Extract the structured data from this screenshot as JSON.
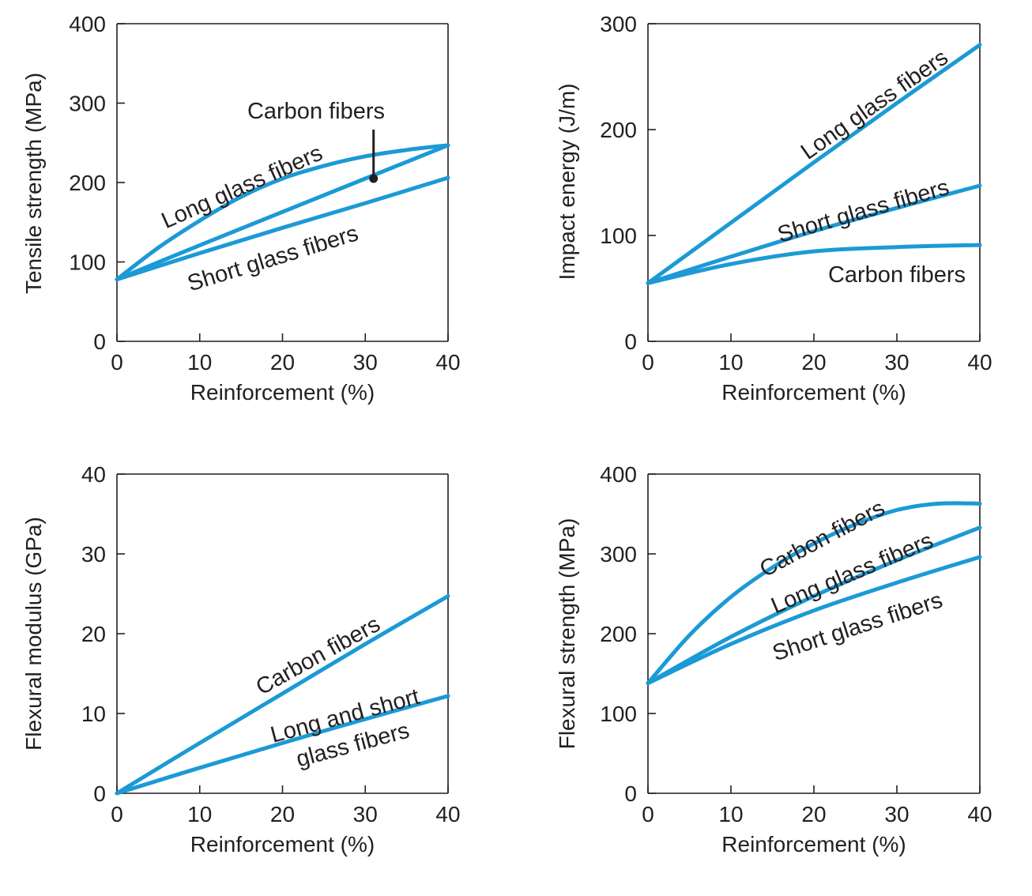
{
  "chart_data": [
    {
      "type": "line",
      "xlabel": "Reinforcement (%)",
      "ylabel": "Tensile strength (MPa)",
      "xlim": [
        0,
        40
      ],
      "ylim": [
        0,
        400
      ],
      "xticks": [
        "0",
        "10",
        "20",
        "30",
        "40"
      ],
      "yticks": [
        "0",
        "100",
        "200",
        "300",
        "400"
      ],
      "series": [
        {
          "name": "Long glass fibers",
          "x": [
            0,
            5,
            10,
            15,
            20,
            25,
            30,
            35,
            40
          ],
          "y": [
            78,
            118,
            152,
            182,
            205,
            221,
            233,
            241,
            247
          ]
        },
        {
          "name": "Carbon fibers",
          "x": [
            0,
            10,
            20,
            30,
            40
          ],
          "y": [
            78,
            121,
            163,
            205,
            247
          ]
        },
        {
          "name": "Short glass fibers",
          "x": [
            0,
            10,
            20,
            30,
            40
          ],
          "y": [
            78,
            111,
            143,
            174,
            206
          ]
        }
      ],
      "annotations": [
        {
          "text": "Long glass fibers",
          "series": "Long glass fibers"
        },
        {
          "text": "Carbon fibers",
          "series": "Carbon fibers",
          "point": [
            31,
            205
          ]
        },
        {
          "text": "Short glass fibers",
          "series": "Short glass fibers"
        }
      ]
    },
    {
      "type": "line",
      "xlabel": "Reinforcement (%)",
      "ylabel": "Impact energy (J/m)",
      "xlim": [
        0,
        40
      ],
      "ylim": [
        0,
        300
      ],
      "xticks": [
        "0",
        "10",
        "20",
        "30",
        "40"
      ],
      "yticks": [
        "0",
        "100",
        "200",
        "300"
      ],
      "series": [
        {
          "name": "Long glass fibers",
          "x": [
            0,
            10,
            20,
            30,
            40
          ],
          "y": [
            55,
            112,
            169,
            225,
            280
          ]
        },
        {
          "name": "Short glass fibers",
          "x": [
            0,
            10,
            20,
            30,
            40
          ],
          "y": [
            55,
            80,
            104,
            126,
            147
          ]
        },
        {
          "name": "Carbon fibers",
          "x": [
            0,
            10,
            20,
            30,
            40
          ],
          "y": [
            55,
            73,
            85,
            89,
            91
          ]
        }
      ],
      "annotations": [
        {
          "text": "Long glass fibers",
          "series": "Long glass fibers"
        },
        {
          "text": "Short glass fibers",
          "series": "Short glass fibers"
        },
        {
          "text": "Carbon fibers",
          "series": "Carbon fibers"
        }
      ]
    },
    {
      "type": "line",
      "xlabel": "Reinforcement (%)",
      "ylabel": "Flexural modulus (GPa)",
      "xlim": [
        0,
        40
      ],
      "ylim": [
        0,
        40
      ],
      "xticks": [
        "0",
        "10",
        "20",
        "30",
        "40"
      ],
      "yticks": [
        "0",
        "10",
        "20",
        "30",
        "40"
      ],
      "series": [
        {
          "name": "Carbon fibers",
          "x": [
            0,
            10,
            20,
            30,
            40
          ],
          "y": [
            0,
            6.3,
            12.5,
            18.7,
            24.7
          ]
        },
        {
          "name": "Long and short glass fibers",
          "x": [
            0,
            10,
            20,
            30,
            40
          ],
          "y": [
            0,
            3.2,
            6.3,
            9.3,
            12.2
          ]
        }
      ],
      "annotations": [
        {
          "text": "Carbon fibers",
          "series": "Carbon fibers"
        },
        {
          "text": [
            "Long and short",
            "glass fibers"
          ],
          "series": "Long and short glass fibers"
        }
      ]
    },
    {
      "type": "line",
      "xlabel": "Reinforcement (%)",
      "ylabel": "Flexural strength (MPa)",
      "xlim": [
        0,
        40
      ],
      "ylim": [
        0,
        400
      ],
      "xticks": [
        "0",
        "10",
        "20",
        "30",
        "40"
      ],
      "yticks": [
        "0",
        "100",
        "200",
        "300",
        "400"
      ],
      "series": [
        {
          "name": "Carbon fibers",
          "x": [
            0,
            5,
            10,
            15,
            20,
            25,
            30,
            35,
            40
          ],
          "y": [
            138,
            198,
            246,
            283,
            313,
            337,
            355,
            363,
            363
          ]
        },
        {
          "name": "Long glass fibers",
          "x": [
            0,
            10,
            20,
            30,
            40
          ],
          "y": [
            138,
            196,
            247,
            292,
            333
          ]
        },
        {
          "name": "Short glass fibers",
          "x": [
            0,
            10,
            20,
            30,
            40
          ],
          "y": [
            138,
            187,
            229,
            264,
            296
          ]
        }
      ],
      "annotations": [
        {
          "text": "Carbon fibers",
          "series": "Carbon fibers"
        },
        {
          "text": "Long glass fibers",
          "series": "Long glass fibers"
        },
        {
          "text": "Short glass fibers",
          "series": "Short glass fibers"
        }
      ]
    }
  ],
  "colors": {
    "curve": "#1b9ad6",
    "axis": "#231f20",
    "background": "#ffffff"
  }
}
